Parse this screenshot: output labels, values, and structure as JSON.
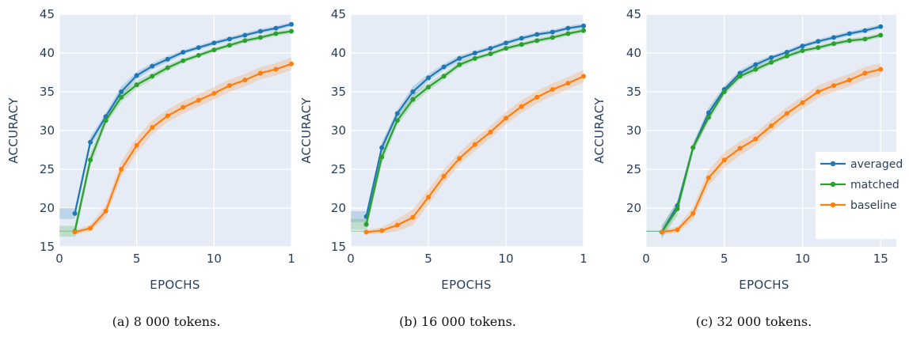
{
  "colors": {
    "averaged": "#1f77b4",
    "matched": "#2ca02c",
    "baseline": "#ff7f0e",
    "plot_bg": "#e5ecf6",
    "grid": "#ffffff"
  },
  "chart_data": [
    {
      "type": "line",
      "caption": "(a) 8 000 tokens.",
      "xlabel": "EPOCHS",
      "ylabel": "ACCURACY",
      "xlim": [
        0,
        15
      ],
      "ylim": [
        15,
        45
      ],
      "xticks": [
        "0",
        "5",
        "10",
        "1"
      ],
      "yticks": [
        "15",
        "20",
        "25",
        "30",
        "35",
        "40",
        "45"
      ],
      "grid": true,
      "legend": "none",
      "x": [
        1,
        2,
        3,
        4,
        5,
        6,
        7,
        8,
        9,
        10,
        11,
        12,
        13,
        14,
        15
      ],
      "series": [
        {
          "name": "averaged",
          "values": [
            19.3,
            28.5,
            31.8,
            35.0,
            37.1,
            38.3,
            39.2,
            40.1,
            40.7,
            41.3,
            41.8,
            42.3,
            42.8,
            43.2,
            43.7
          ]
        },
        {
          "name": "matched",
          "values": [
            17.0,
            26.2,
            31.3,
            34.3,
            35.9,
            37.0,
            38.1,
            39.0,
            39.7,
            40.4,
            41.0,
            41.6,
            42.0,
            42.5,
            42.8
          ]
        },
        {
          "name": "baseline",
          "values": [
            16.9,
            17.4,
            19.6,
            25.0,
            28.1,
            30.4,
            31.9,
            33.0,
            33.9,
            34.8,
            35.8,
            36.5,
            37.4,
            37.9,
            38.6
          ]
        }
      ]
    },
    {
      "type": "line",
      "caption": "(b) 16 000 tokens.",
      "xlabel": "EPOCHS",
      "ylabel": "ACCURACY",
      "xlim": [
        0,
        15
      ],
      "ylim": [
        15,
        45
      ],
      "xticks": [
        "0",
        "5",
        "10",
        "1"
      ],
      "yticks": [
        "15",
        "20",
        "25",
        "30",
        "35",
        "40",
        "45"
      ],
      "grid": true,
      "legend": "none",
      "x": [
        1,
        2,
        3,
        4,
        5,
        6,
        7,
        8,
        9,
        10,
        11,
        12,
        13,
        14,
        15
      ],
      "series": [
        {
          "name": "averaged",
          "values": [
            18.9,
            27.8,
            32.2,
            35.0,
            36.8,
            38.2,
            39.3,
            40.0,
            40.6,
            41.3,
            41.9,
            42.4,
            42.7,
            43.2,
            43.5
          ]
        },
        {
          "name": "matched",
          "values": [
            17.9,
            26.6,
            31.3,
            34.0,
            35.6,
            37.0,
            38.5,
            39.3,
            39.9,
            40.6,
            41.1,
            41.6,
            42.0,
            42.5,
            42.9
          ]
        },
        {
          "name": "baseline",
          "values": [
            16.9,
            17.1,
            17.8,
            18.8,
            21.4,
            24.1,
            26.4,
            28.2,
            29.8,
            31.6,
            33.1,
            34.3,
            35.3,
            36.1,
            37.0
          ]
        }
      ]
    },
    {
      "type": "line",
      "caption": "(c) 32 000 tokens.",
      "xlabel": "EPOCHS",
      "ylabel": "ACCURACY",
      "xlim": [
        0,
        16
      ],
      "ylim": [
        15,
        45
      ],
      "xticks": [
        "0",
        "5",
        "10",
        "15"
      ],
      "yticks": [
        "20",
        "25",
        "30",
        "35",
        "40",
        "45"
      ],
      "grid": true,
      "legend": "right",
      "x": [
        1,
        2,
        3,
        4,
        5,
        6,
        7,
        8,
        9,
        10,
        11,
        12,
        13,
        14,
        15
      ],
      "series": [
        {
          "name": "averaged",
          "values": [
            16.9,
            20.3,
            27.8,
            32.3,
            35.3,
            37.4,
            38.5,
            39.4,
            40.1,
            40.9,
            41.5,
            42.0,
            42.5,
            42.9,
            43.4
          ]
        },
        {
          "name": "matched",
          "values": [
            16.9,
            19.9,
            27.8,
            31.7,
            35.0,
            37.0,
            37.9,
            38.8,
            39.6,
            40.3,
            40.7,
            41.2,
            41.6,
            41.8,
            42.3
          ]
        },
        {
          "name": "baseline",
          "values": [
            16.9,
            17.2,
            19.3,
            23.9,
            26.2,
            27.7,
            28.9,
            30.6,
            32.2,
            33.6,
            35.0,
            35.8,
            36.5,
            37.4,
            37.9
          ]
        }
      ]
    }
  ]
}
